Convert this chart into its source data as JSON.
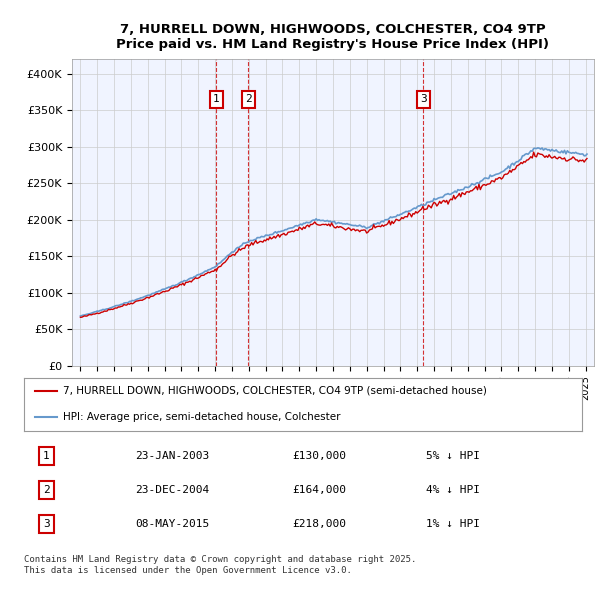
{
  "title_line1": "7, HURRELL DOWN, HIGHWOODS, COLCHESTER, CO4 9TP",
  "title_line2": "Price paid vs. HM Land Registry's House Price Index (HPI)",
  "ylabel_ticks": [
    "£0",
    "£50K",
    "£100K",
    "£150K",
    "£200K",
    "£250K",
    "£300K",
    "£350K",
    "£400K"
  ],
  "ytick_values": [
    0,
    50000,
    100000,
    150000,
    200000,
    250000,
    300000,
    350000,
    400000
  ],
  "xlim": [
    1994.5,
    2025.5
  ],
  "ylim": [
    0,
    420000
  ],
  "sale_dates": [
    2003.07,
    2004.98,
    2015.36
  ],
  "sale_prices": [
    130000,
    164000,
    218000
  ],
  "sale_labels": [
    "1",
    "2",
    "3"
  ],
  "legend_line1": "7, HURRELL DOWN, HIGHWOODS, COLCHESTER, CO4 9TP (semi-detached house)",
  "legend_line2": "HPI: Average price, semi-detached house, Colchester",
  "table_data": [
    [
      "1",
      "23-JAN-2003",
      "£130,000",
      "5% ↓ HPI"
    ],
    [
      "2",
      "23-DEC-2004",
      "£164,000",
      "4% ↓ HPI"
    ],
    [
      "3",
      "08-MAY-2015",
      "£218,000",
      "1% ↓ HPI"
    ]
  ],
  "footer_text": "Contains HM Land Registry data © Crown copyright and database right 2025.\nThis data is licensed under the Open Government Licence v3.0.",
  "red_color": "#cc0000",
  "blue_color": "#6699cc",
  "bg_color": "#f0f4ff",
  "grid_color": "#cccccc"
}
